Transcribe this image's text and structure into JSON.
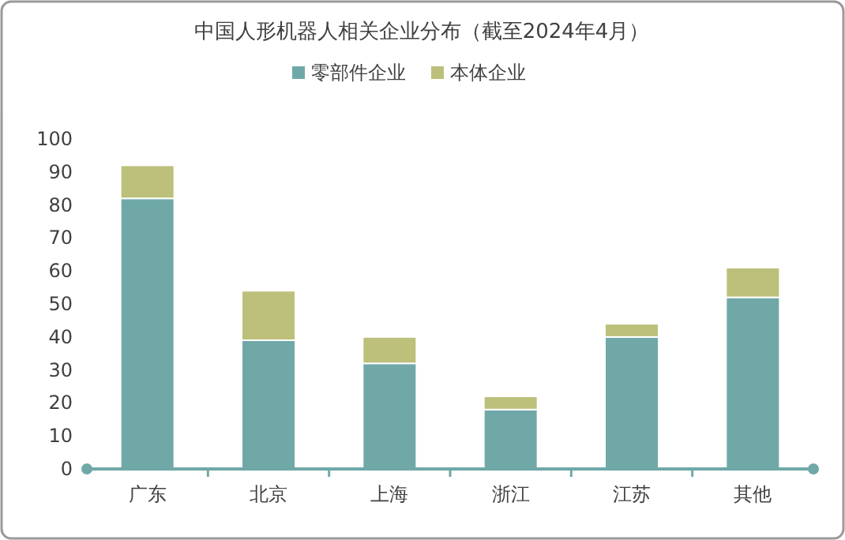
{
  "chart_data": {
    "type": "bar",
    "title": "中国人形机器人相关企业分布（截至2024年4月）",
    "categories": [
      "广东",
      "北京",
      "上海",
      "浙江",
      "江苏",
      "其他"
    ],
    "series": [
      {
        "name": "零部件企业",
        "color": "#70a8a8",
        "values": [
          82,
          39,
          32,
          18,
          40,
          52
        ]
      },
      {
        "name": "本体企业",
        "color": "#bcc07a",
        "values": [
          10,
          15,
          8,
          4,
          4,
          9
        ]
      }
    ],
    "stacked": true,
    "ylim": [
      0,
      100
    ],
    "yticks": [
      0,
      10,
      20,
      30,
      40,
      50,
      60,
      70,
      80,
      90,
      100
    ],
    "grid": false,
    "legend": "top"
  }
}
